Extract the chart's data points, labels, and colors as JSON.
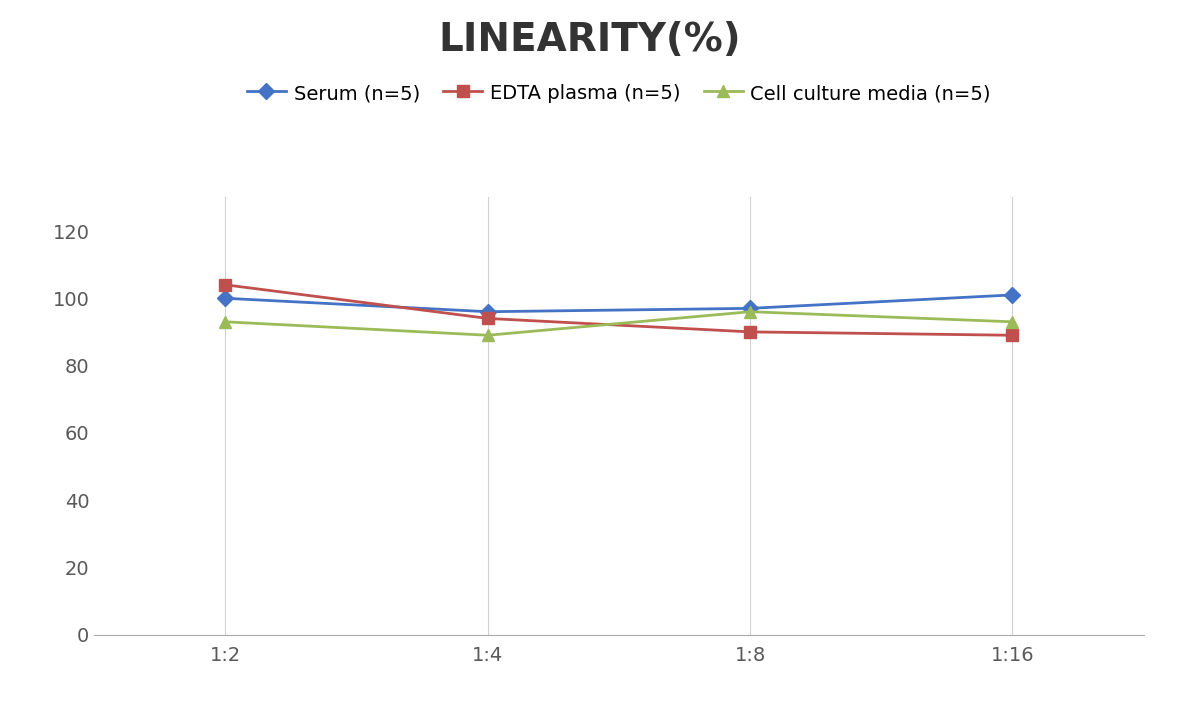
{
  "title": "LINEARITY(%)",
  "title_fontsize": 28,
  "title_fontweight": "bold",
  "x_labels": [
    "1:2",
    "1:4",
    "1:8",
    "1:16"
  ],
  "x_positions": [
    0,
    1,
    2,
    3
  ],
  "series": [
    {
      "label": "Serum (n=5)",
      "values": [
        100,
        96,
        97,
        101
      ],
      "color": "#4472C4",
      "marker": "D",
      "marker_size": 8,
      "linewidth": 2.0
    },
    {
      "label": "EDTA plasma (n=5)",
      "values": [
        104,
        94,
        90,
        89
      ],
      "color": "#C0504D",
      "marker": "s",
      "marker_size": 8,
      "linewidth": 2.0
    },
    {
      "label": "Cell culture media (n=5)",
      "values": [
        93,
        89,
        96,
        93
      ],
      "color": "#9BBB59",
      "marker": "^",
      "marker_size": 8,
      "linewidth": 2.0
    }
  ],
  "ylim": [
    0,
    130
  ],
  "yticks": [
    0,
    20,
    40,
    60,
    80,
    100,
    120
  ],
  "background_color": "#ffffff",
  "grid_color": "#d0d0d0",
  "legend_fontsize": 14,
  "tick_fontsize": 14,
  "axis_tick_color": "#595959",
  "figsize": [
    11.79,
    7.05
  ],
  "dpi": 100
}
